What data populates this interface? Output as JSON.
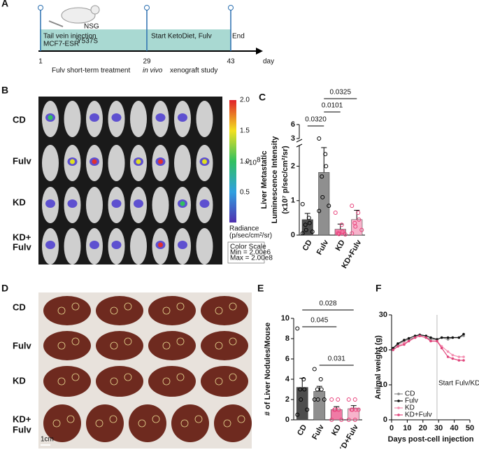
{
  "panel_labels": [
    "A",
    "B",
    "C",
    "D",
    "E",
    "F"
  ],
  "timeline": {
    "mouse_strain": "NSG",
    "injection": "Tail vein injection",
    "cell_line": "MCF7-ESR",
    "mutation": "Y537S",
    "start": "Start KetoDiet, Fulv",
    "end": "End",
    "days": [
      "1",
      "29",
      "43"
    ],
    "unit": "day",
    "caption_start": "Fulv short-term treatment",
    "caption_italic": "in vivo",
    "caption_end": "xenograft study"
  },
  "imaging": {
    "row_labels": [
      "CD",
      "Fulv",
      "KD",
      "KD+",
      "Fulv"
    ],
    "colorbar_ticks": [
      "2.0",
      "1.5",
      "1.0",
      "0.5"
    ],
    "colorbar_multiplier": "×10",
    "colorbar_exponent": "8",
    "radiance_label": "Radiance",
    "radiance_unit": "(p/sec/cm²/sr)",
    "color_scale_title": "Color Scale",
    "color_scale_min": "Min = 2.00e6",
    "color_scale_max": "Max = 2.00e8"
  },
  "liver_images": {
    "row_labels": [
      "CD",
      "Fulv",
      "KD",
      "KD+",
      "Fulv"
    ],
    "scale_bar": "1cm"
  },
  "chart_data": [
    {
      "type": "bar",
      "ylabel": [
        "Liver Metastatic",
        "Luminescence Intensity",
        "(x10⁷ p/sec/cm²/sr)"
      ],
      "categories": [
        "CD",
        "Fulv",
        "KD",
        "KD+Fulv"
      ],
      "values": [
        0.45,
        1.82,
        0.17,
        0.45
      ],
      "errors": [
        0.18,
        0.72,
        0.15,
        0.27
      ],
      "points": [
        [
          0.9,
          0.5,
          0.35,
          0.3,
          0.15,
          0.1,
          0.05
        ],
        [
          3.0,
          2.35,
          2.0,
          1.7,
          1.1,
          0.85,
          0.7
        ],
        [
          0.65,
          0.3,
          0.1,
          0.05,
          0.03,
          0.02
        ],
        [
          0.85,
          0.65,
          0.45,
          0.35,
          0.25,
          0.15,
          0.05
        ]
      ],
      "colors": [
        "#4d4d4d",
        "#8f8f8f",
        "#f07aa5",
        "#f7b3cb"
      ],
      "point_colors": [
        "#000000",
        "#000000",
        "#e8407a",
        "#e8407a"
      ],
      "ylim": [
        0,
        2.6
      ],
      "yticks": [
        0,
        1,
        2
      ],
      "upper_ylim": [
        3,
        6
      ],
      "upper_yticks": [
        3,
        6
      ],
      "comparisons": [
        {
          "from": "CD",
          "to": "Fulv",
          "label": "0.0320"
        },
        {
          "from": "Fulv",
          "to": "KD",
          "label": "0.0101"
        },
        {
          "from": "Fulv",
          "to": "KD+Fulv",
          "label": "0.0325"
        }
      ]
    },
    {
      "type": "bar",
      "ylabel": [
        "# of Liver Nodules/Mouse"
      ],
      "categories": [
        "CD",
        "Fulv",
        "KD",
        "KD+Fulv"
      ],
      "values": [
        3.2,
        2.8,
        1.0,
        1.1
      ],
      "errors": [
        0.9,
        0.5,
        0.3,
        0.3
      ],
      "points": [
        [
          9,
          4,
          3,
          3,
          2,
          1,
          0.5
        ],
        [
          5,
          4,
          3,
          3,
          2,
          2,
          2
        ],
        [
          2,
          2,
          1,
          1,
          1,
          0,
          0
        ],
        [
          2,
          2,
          1,
          1,
          1,
          1,
          0,
          0
        ]
      ],
      "colors": [
        "#4d4d4d",
        "#8f8f8f",
        "#f07aa5",
        "#f7b3cb"
      ],
      "point_colors": [
        "#000000",
        "#000000",
        "#e8407a",
        "#e8407a"
      ],
      "ylim": [
        0,
        10
      ],
      "yticks": [
        0,
        2,
        4,
        6,
        8,
        10
      ],
      "comparisons": [
        {
          "from": "CD",
          "to": "KD+Fulv",
          "label": "0.028"
        },
        {
          "from": "CD",
          "to": "KD",
          "label": "0.045"
        },
        {
          "from": "Fulv",
          "to": "KD+Fulv",
          "label": "0.031"
        }
      ]
    },
    {
      "type": "line",
      "xlabel": "Days post-cell injection",
      "ylabel": "Animal weight (g)",
      "x": [
        1,
        4,
        8,
        11,
        15,
        18,
        22,
        25,
        29,
        32,
        36,
        39,
        43,
        46
      ],
      "series": [
        {
          "name": "CD",
          "color": "#8a8a8a",
          "values": [
            20.5,
            21.5,
            22.5,
            23,
            23.5,
            24,
            23.5,
            23,
            23,
            23.5,
            23,
            23.5,
            23.5,
            24
          ]
        },
        {
          "name": "Fulv",
          "color": "#111111",
          "values": [
            20.5,
            21.8,
            22.8,
            23.3,
            24,
            24.3,
            24,
            23.5,
            23,
            23.5,
            23.5,
            23.5,
            23.5,
            24.5
          ]
        },
        {
          "name": "KD",
          "color": "#f48fb1",
          "values": [
            20,
            21,
            22,
            22.5,
            23.5,
            24,
            23.5,
            22.5,
            22.5,
            21,
            19.5,
            18.5,
            18,
            18
          ]
        },
        {
          "name": "KD+Fulv",
          "color": "#e0457b",
          "values": [
            20,
            21,
            21.5,
            22.5,
            23.5,
            24,
            23.5,
            22.5,
            22.5,
            20.5,
            18,
            17.5,
            17,
            17
          ]
        }
      ],
      "xlim": [
        0,
        50
      ],
      "xticks": [
        0,
        10,
        20,
        30,
        40,
        50
      ],
      "ylim": [
        0,
        30
      ],
      "yticks": [
        0,
        10,
        20,
        30
      ],
      "vline_x": 29,
      "annotation": "Start Fulv/KD",
      "legend": "lower left"
    }
  ]
}
